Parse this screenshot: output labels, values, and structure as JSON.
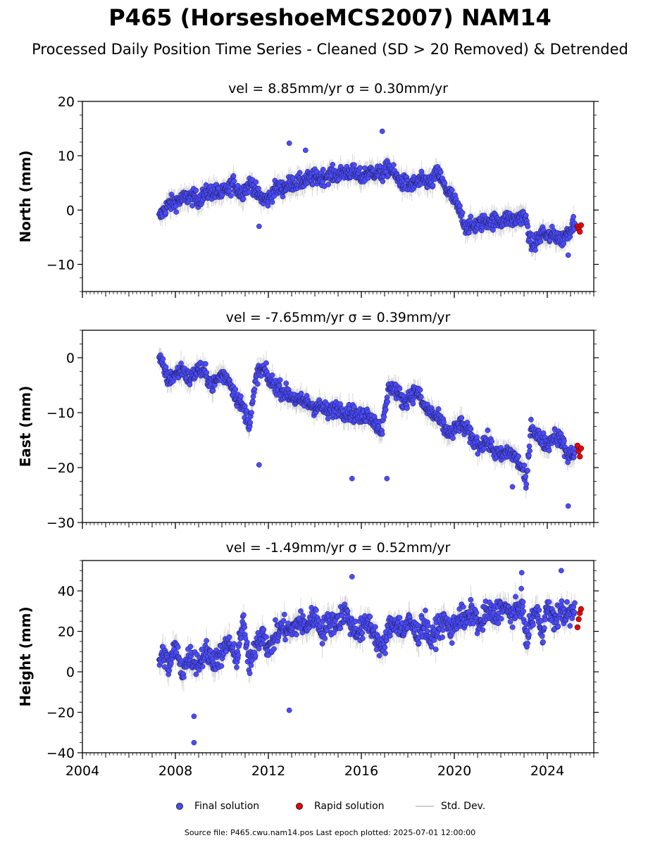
{
  "figure": {
    "title": "P465 (HorseshoeMCS2007) NAM14",
    "subtitle": "Processed Daily Position Time Series - Cleaned (SD > 20 Removed) & Detrended",
    "footer": "Source file: P465.cwu.nam14.pos  Last epoch plotted: 2025-07-01 12:00:00",
    "legend": {
      "final": "Final solution",
      "rapid": "Rapid solution",
      "std": "Std. Dev."
    },
    "colors": {
      "final": "#4b4bff",
      "rapid": "#ee0000",
      "std": "#cfcfcf"
    }
  },
  "chart_data": [
    {
      "type": "scatter",
      "title": "vel = 8.85mm/yr   σ = 0.30mm/yr",
      "ylabel": "North (mm)",
      "xlim": [
        2004,
        2026
      ],
      "ylim": [
        -15,
        20
      ],
      "yticks": [
        -10,
        0,
        10,
        20
      ],
      "xticks": [
        2004,
        2008,
        2012,
        2016,
        2020,
        2024
      ],
      "grid": false,
      "series": [
        {
          "role": "final",
          "x": [
            2007.3,
            2007.5,
            2007.7,
            2008.0,
            2008.3,
            2008.6,
            2009.0,
            2009.3,
            2009.6,
            2010.0,
            2010.3,
            2010.5,
            2010.8,
            2011.0,
            2011.3,
            2011.5,
            2011.8,
            2012.0,
            2012.3,
            2012.6,
            2013.0,
            2013.3,
            2013.6,
            2014.0,
            2014.3,
            2014.6,
            2015.0,
            2015.3,
            2015.6,
            2016.0,
            2016.3,
            2016.6,
            2016.9,
            2017.2,
            2017.5,
            2017.8,
            2018.1,
            2018.4,
            2018.7,
            2019.0,
            2019.3,
            2019.6,
            2019.9,
            2020.2,
            2020.5,
            2020.8,
            2021.1,
            2021.4,
            2021.7,
            2022.0,
            2022.3,
            2022.6,
            2022.9,
            2023.1,
            2023.3,
            2023.5,
            2023.8,
            2024.0,
            2024.3,
            2024.6,
            2024.9,
            2025.2
          ],
          "y": [
            -1.5,
            0,
            1,
            1.5,
            2,
            2.5,
            2,
            3,
            3.5,
            3,
            4,
            5,
            3,
            4,
            5,
            3,
            2,
            2,
            4,
            4,
            5,
            5,
            5.5,
            6,
            6,
            6.5,
            6.5,
            7,
            7,
            6,
            7,
            7,
            6.5,
            8,
            6,
            5,
            4.5,
            5,
            5.5,
            5,
            7,
            4,
            2.5,
            0,
            -3,
            -3,
            -2.5,
            -2,
            -2,
            -2,
            -1.5,
            -2,
            -1,
            -2,
            -6.5,
            -6,
            -4,
            -5,
            -4.5,
            -5.5,
            -4,
            -2
          ]
        },
        {
          "role": "rapid",
          "x": [
            2025.3,
            2025.35,
            2025.4,
            2025.45
          ],
          "y": [
            -3,
            -3.5,
            -4,
            -2.8
          ]
        }
      ],
      "outliers": {
        "x": [
          2012.9,
          2016.9,
          2013.6,
          2011.6,
          2024.9
        ],
        "y": [
          12.3,
          14.5,
          11,
          -3,
          -8.3
        ]
      }
    },
    {
      "type": "scatter",
      "title": "vel = -7.65mm/yr   σ = 0.39mm/yr",
      "ylabel": "East (mm)",
      "xlim": [
        2004,
        2026
      ],
      "ylim": [
        -30,
        5
      ],
      "yticks": [
        -30,
        -20,
        -10,
        0
      ],
      "xticks": [
        2004,
        2008,
        2012,
        2016,
        2020,
        2024
      ],
      "grid": false,
      "series": [
        {
          "role": "final",
          "x": [
            2007.3,
            2007.5,
            2007.7,
            2008.0,
            2008.3,
            2008.6,
            2009.0,
            2009.3,
            2009.6,
            2010.0,
            2010.3,
            2010.6,
            2010.9,
            2011.2,
            2011.5,
            2011.8,
            2012.0,
            2012.3,
            2012.6,
            2013.0,
            2013.3,
            2013.6,
            2014.0,
            2014.3,
            2014.6,
            2015.0,
            2015.3,
            2015.6,
            2016.0,
            2016.3,
            2016.6,
            2016.9,
            2017.2,
            2017.5,
            2017.8,
            2018.1,
            2018.4,
            2018.7,
            2019.0,
            2019.3,
            2019.6,
            2019.9,
            2020.2,
            2020.5,
            2020.8,
            2021.1,
            2021.4,
            2021.7,
            2022.0,
            2022.3,
            2022.6,
            2022.9,
            2023.1,
            2023.3,
            2023.5,
            2023.8,
            2024.0,
            2024.3,
            2024.6,
            2024.9,
            2025.2
          ],
          "y": [
            0,
            -2,
            -4,
            -3,
            -2,
            -4,
            -2,
            -3,
            -5,
            -3,
            -4,
            -7,
            -9,
            -12,
            -3,
            -2,
            -4,
            -5,
            -6,
            -7,
            -8,
            -8,
            -9,
            -9,
            -10,
            -9,
            -10,
            -10,
            -11,
            -10,
            -12,
            -13,
            -5,
            -6,
            -8,
            -7,
            -6,
            -9,
            -10,
            -11,
            -13,
            -14,
            -12,
            -13,
            -15,
            -16,
            -15,
            -17,
            -18,
            -17,
            -18,
            -20,
            -23,
            -12,
            -14,
            -15,
            -16,
            -14,
            -15,
            -18,
            -17
          ]
        },
        {
          "role": "rapid",
          "x": [
            2025.3,
            2025.35,
            2025.4,
            2025.45
          ],
          "y": [
            -16,
            -17,
            -18,
            -16.5
          ]
        }
      ],
      "outliers": {
        "x": [
          2011.6,
          2015.6,
          2017.1,
          2024.9,
          2022.5
        ],
        "y": [
          -19.5,
          -22,
          -22,
          -27,
          -23.5
        ]
      }
    },
    {
      "type": "scatter",
      "title": "vel = -1.49mm/yr   σ = 0.52mm/yr",
      "ylabel": "Height (mm)",
      "xlim": [
        2004,
        2026
      ],
      "ylim": [
        -40,
        55
      ],
      "yticks": [
        -40,
        -20,
        0,
        20,
        40
      ],
      "xticks": [
        2004,
        2008,
        2012,
        2016,
        2020,
        2024
      ],
      "grid": false,
      "series": [
        {
          "role": "final",
          "x": [
            2007.3,
            2007.5,
            2007.7,
            2008.0,
            2008.3,
            2008.6,
            2009.0,
            2009.3,
            2009.6,
            2010.0,
            2010.3,
            2010.6,
            2010.9,
            2011.2,
            2011.5,
            2011.8,
            2012.0,
            2012.3,
            2012.6,
            2013.0,
            2013.3,
            2013.6,
            2014.0,
            2014.3,
            2014.6,
            2015.0,
            2015.3,
            2015.6,
            2016.0,
            2016.3,
            2016.6,
            2016.9,
            2017.2,
            2017.5,
            2017.8,
            2018.1,
            2018.4,
            2018.7,
            2019.0,
            2019.3,
            2019.6,
            2019.9,
            2020.2,
            2020.5,
            2020.8,
            2021.1,
            2021.4,
            2021.7,
            2022.0,
            2022.3,
            2022.6,
            2022.9,
            2023.1,
            2023.3,
            2023.5,
            2023.8,
            2024.0,
            2024.3,
            2024.6,
            2024.9,
            2025.2
          ],
          "y": [
            5,
            10,
            2,
            12,
            0,
            8,
            4,
            10,
            6,
            8,
            15,
            5,
            25,
            2,
            15,
            20,
            10,
            18,
            22,
            20,
            25,
            22,
            28,
            20,
            24,
            25,
            30,
            22,
            20,
            25,
            18,
            10,
            22,
            25,
            20,
            25,
            18,
            25,
            15,
            22,
            25,
            20,
            28,
            25,
            30,
            22,
            30,
            28,
            32,
            30,
            28,
            35,
            15,
            25,
            30,
            20,
            32,
            25,
            30,
            28,
            30
          ]
        },
        {
          "role": "rapid",
          "x": [
            2025.3,
            2025.35,
            2025.4,
            2025.45
          ],
          "y": [
            22,
            26,
            29,
            31
          ]
        }
      ],
      "outliers": {
        "x": [
          2008.8,
          2008.8,
          2012.9,
          2015.6,
          2022.9,
          2024.6
        ],
        "y": [
          -35,
          -22,
          -19,
          47,
          49,
          50
        ]
      }
    }
  ]
}
